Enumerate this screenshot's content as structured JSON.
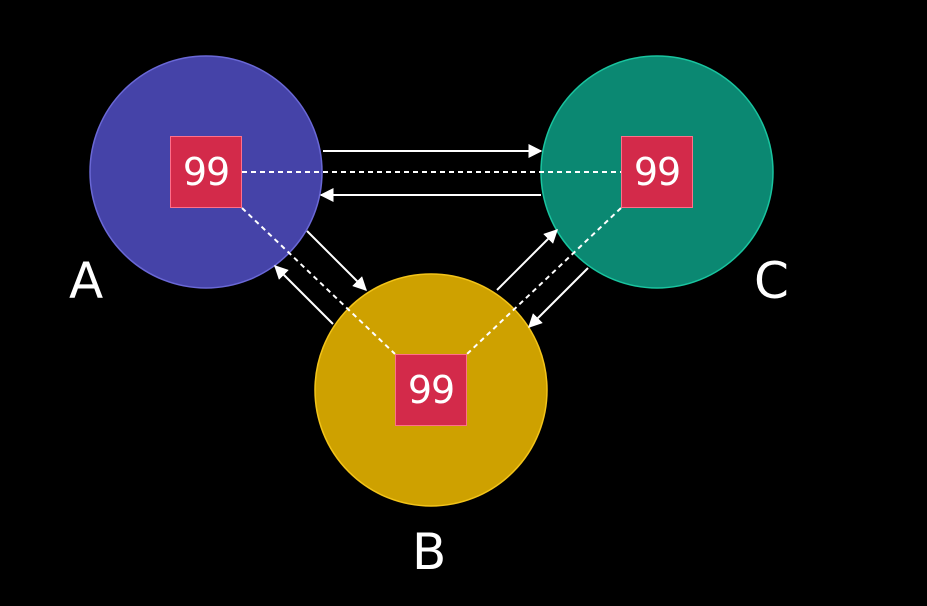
{
  "colors": {
    "background": "#000000",
    "node_a": "#4543a8",
    "node_b": "#cea100",
    "node_c": "#0b8872",
    "value_box": "#d32a4a",
    "arrow": "#ffffff"
  },
  "nodes": [
    {
      "id": "A",
      "label": "A",
      "value": "99"
    },
    {
      "id": "B",
      "label": "B",
      "value": "99"
    },
    {
      "id": "C",
      "label": "C",
      "value": "99"
    }
  ],
  "links": [
    {
      "from": "A",
      "to": "C"
    },
    {
      "from": "C",
      "to": "A"
    },
    {
      "from": "A",
      "to": "B"
    },
    {
      "from": "B",
      "to": "A"
    },
    {
      "from": "B",
      "to": "C"
    },
    {
      "from": "C",
      "to": "B"
    }
  ]
}
